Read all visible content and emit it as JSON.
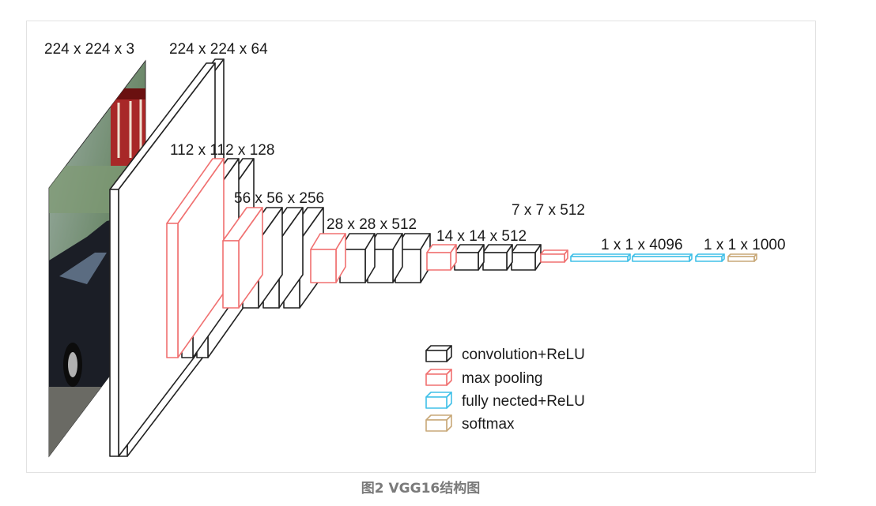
{
  "diagram": {
    "labels": {
      "input": "224 x 224 x 3",
      "conv1": "224 x 224 x 64",
      "conv2": "112 x 112 x 128",
      "conv3": "56 x 56 x 256",
      "conv4": "28 x 28 x 512",
      "conv5": "14 x 14 x 512",
      "pool5": "7 x 7 x 512",
      "fc": "1 x 1 x 4096",
      "softmax": "1 x 1 x 1000"
    },
    "legend": [
      {
        "label": "convolution+ReLU",
        "color": "#222222",
        "icon": "black-box-icon"
      },
      {
        "label": "max pooling",
        "color": "#f07070",
        "icon": "red-box-icon"
      },
      {
        "label": "fully nected+ReLU",
        "color": "#40c0e8",
        "icon": "cyan-box-icon"
      },
      {
        "label": "softmax",
        "color": "#c8a878",
        "icon": "tan-box-icon"
      }
    ]
  },
  "caption": "图2 VGG16结构图",
  "colors": {
    "conv": "#222222",
    "pool": "#f07070",
    "fc": "#40c0e8",
    "softmax": "#c8a878"
  }
}
